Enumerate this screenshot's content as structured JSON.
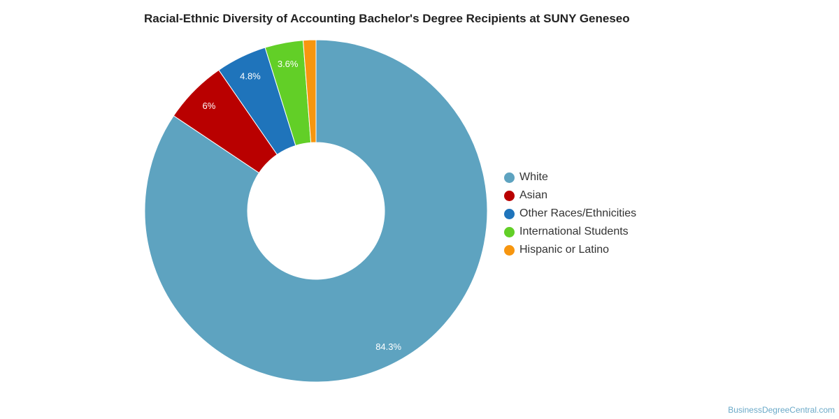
{
  "chart_data": {
    "type": "pie",
    "title": "Racial-Ethnic Diversity of Accounting Bachelor's Degree Recipients at SUNY Geneseo",
    "slices": [
      {
        "label": "White",
        "value": 84.3,
        "display": "84.3%",
        "color": "#5ea3c0"
      },
      {
        "label": "Asian",
        "value": 6.0,
        "display": "6%",
        "color": "#b90000"
      },
      {
        "label": "Other Races/Ethnicities",
        "value": 4.8,
        "display": "4.8%",
        "color": "#1f74bb"
      },
      {
        "label": "International Students",
        "value": 3.6,
        "display": "3.6%",
        "color": "#62cf27"
      },
      {
        "label": "Hispanic or Latino",
        "value": 1.2,
        "display": "",
        "color": "#f7960f"
      }
    ],
    "legend_position": "right"
  },
  "credit": "BusinessDegreeCentral.com"
}
